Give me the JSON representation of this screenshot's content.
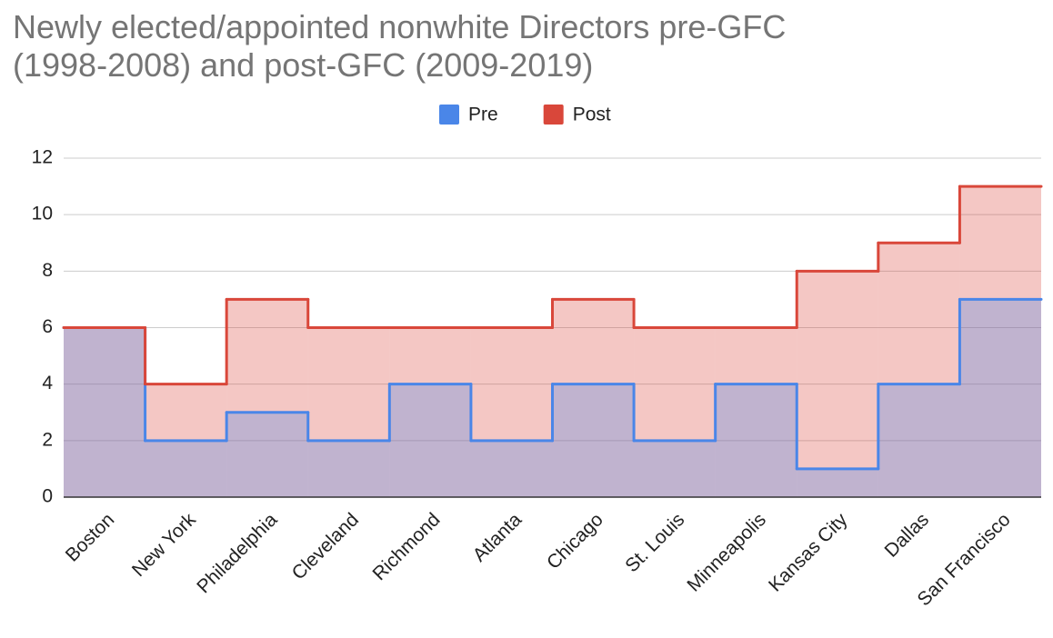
{
  "chart_data": {
    "type": "area",
    "title": "Newly elected/appointed nonwhite Directors pre-GFC (1998-2008) and post-GFC (2009-2019)",
    "categories": [
      "Boston",
      "New York",
      "Philadelphia",
      "Cleveland",
      "Richmond",
      "Atlanta",
      "Chicago",
      "St. Louis",
      "Minneapolis",
      "Kansas City",
      "Dallas",
      "San Francisco"
    ],
    "series": [
      {
        "name": "Pre",
        "color": "#4a86e8",
        "values": [
          6,
          2,
          3,
          2,
          4,
          2,
          4,
          2,
          4,
          1,
          4,
          7
        ]
      },
      {
        "name": "Post",
        "color": "#d9473a",
        "values": [
          6,
          4,
          7,
          6,
          6,
          6,
          7,
          6,
          6,
          8,
          9,
          11
        ]
      }
    ],
    "ylim": [
      0,
      12
    ],
    "yticks": [
      0,
      2,
      4,
      6,
      8,
      10,
      12
    ],
    "grid": true,
    "legend": "top"
  }
}
